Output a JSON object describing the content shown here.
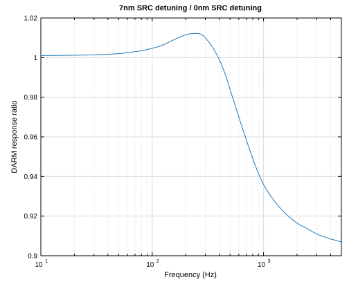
{
  "chart_data": {
    "type": "line",
    "title": "7nm SRC detuning / 0nm SRC detuning",
    "xlabel": "Frequency (Hz)",
    "ylabel": "DARM response ratio",
    "xscale": "log",
    "xlim": [
      10,
      5000
    ],
    "ylim": [
      0.9,
      1.02
    ],
    "grid": true,
    "line_color": "#1f77b4",
    "x_ticks": [
      {
        "base": "10",
        "exp": "1"
      },
      {
        "base": "10",
        "exp": "2"
      },
      {
        "base": "10",
        "exp": "3"
      }
    ],
    "y_ticks": [
      "0.9",
      "0.92",
      "0.94",
      "0.96",
      "0.98",
      "1",
      "1.02"
    ],
    "series": [
      {
        "x": [
          10,
          15,
          20,
          30,
          40,
          50,
          60,
          70,
          80,
          100,
          120,
          150,
          180,
          200,
          220,
          250,
          280,
          300,
          350,
          400,
          450,
          500,
          600,
          700,
          800,
          900,
          1000,
          1200,
          1500,
          2000,
          2500,
          3000,
          4000,
          5000
        ],
        "values": [
          1.001,
          1.0011,
          1.0012,
          1.0014,
          1.0017,
          1.002,
          1.0025,
          1.003,
          1.0035,
          1.0047,
          1.006,
          1.0085,
          1.0105,
          1.0115,
          1.012,
          1.0122,
          1.0115,
          1.01,
          1.005,
          0.999,
          0.992,
          0.984,
          0.97,
          0.9585,
          0.949,
          0.9415,
          0.936,
          0.929,
          0.9225,
          0.9165,
          0.9135,
          0.911,
          0.9085,
          0.907
        ]
      }
    ]
  }
}
